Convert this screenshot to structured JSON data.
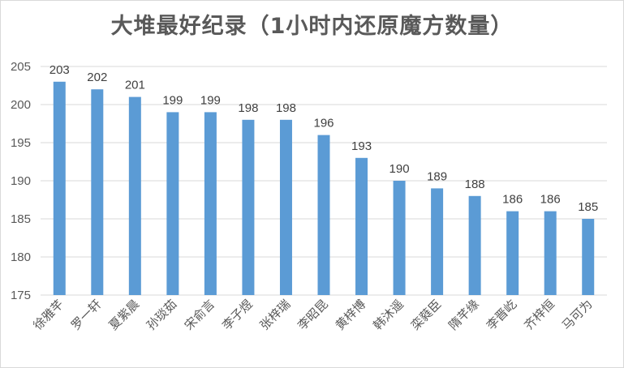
{
  "chart_data": {
    "type": "bar",
    "title": "大堆最好纪录（1小时内还原魔方数量）",
    "xlabel": "",
    "ylabel": "",
    "ylim": [
      175,
      205
    ],
    "yticks": [
      175,
      180,
      185,
      190,
      195,
      200,
      205
    ],
    "grid": true,
    "legend": "none",
    "bar_color": "#5b9bd5",
    "categories": [
      "徐雅芊",
      "罗一轩",
      "夏紫晨",
      "孙琰茹",
      "宋俞言",
      "李子煜",
      "张梓瑞",
      "李昭昆",
      "黄梓博",
      "韩沐遥",
      "栾蕤臣",
      "隋芊缘",
      "李晋屹",
      "齐梓恒",
      "马可为"
    ],
    "values": [
      203,
      202,
      201,
      199,
      199,
      198,
      198,
      196,
      193,
      190,
      189,
      188,
      186,
      186,
      185
    ]
  }
}
